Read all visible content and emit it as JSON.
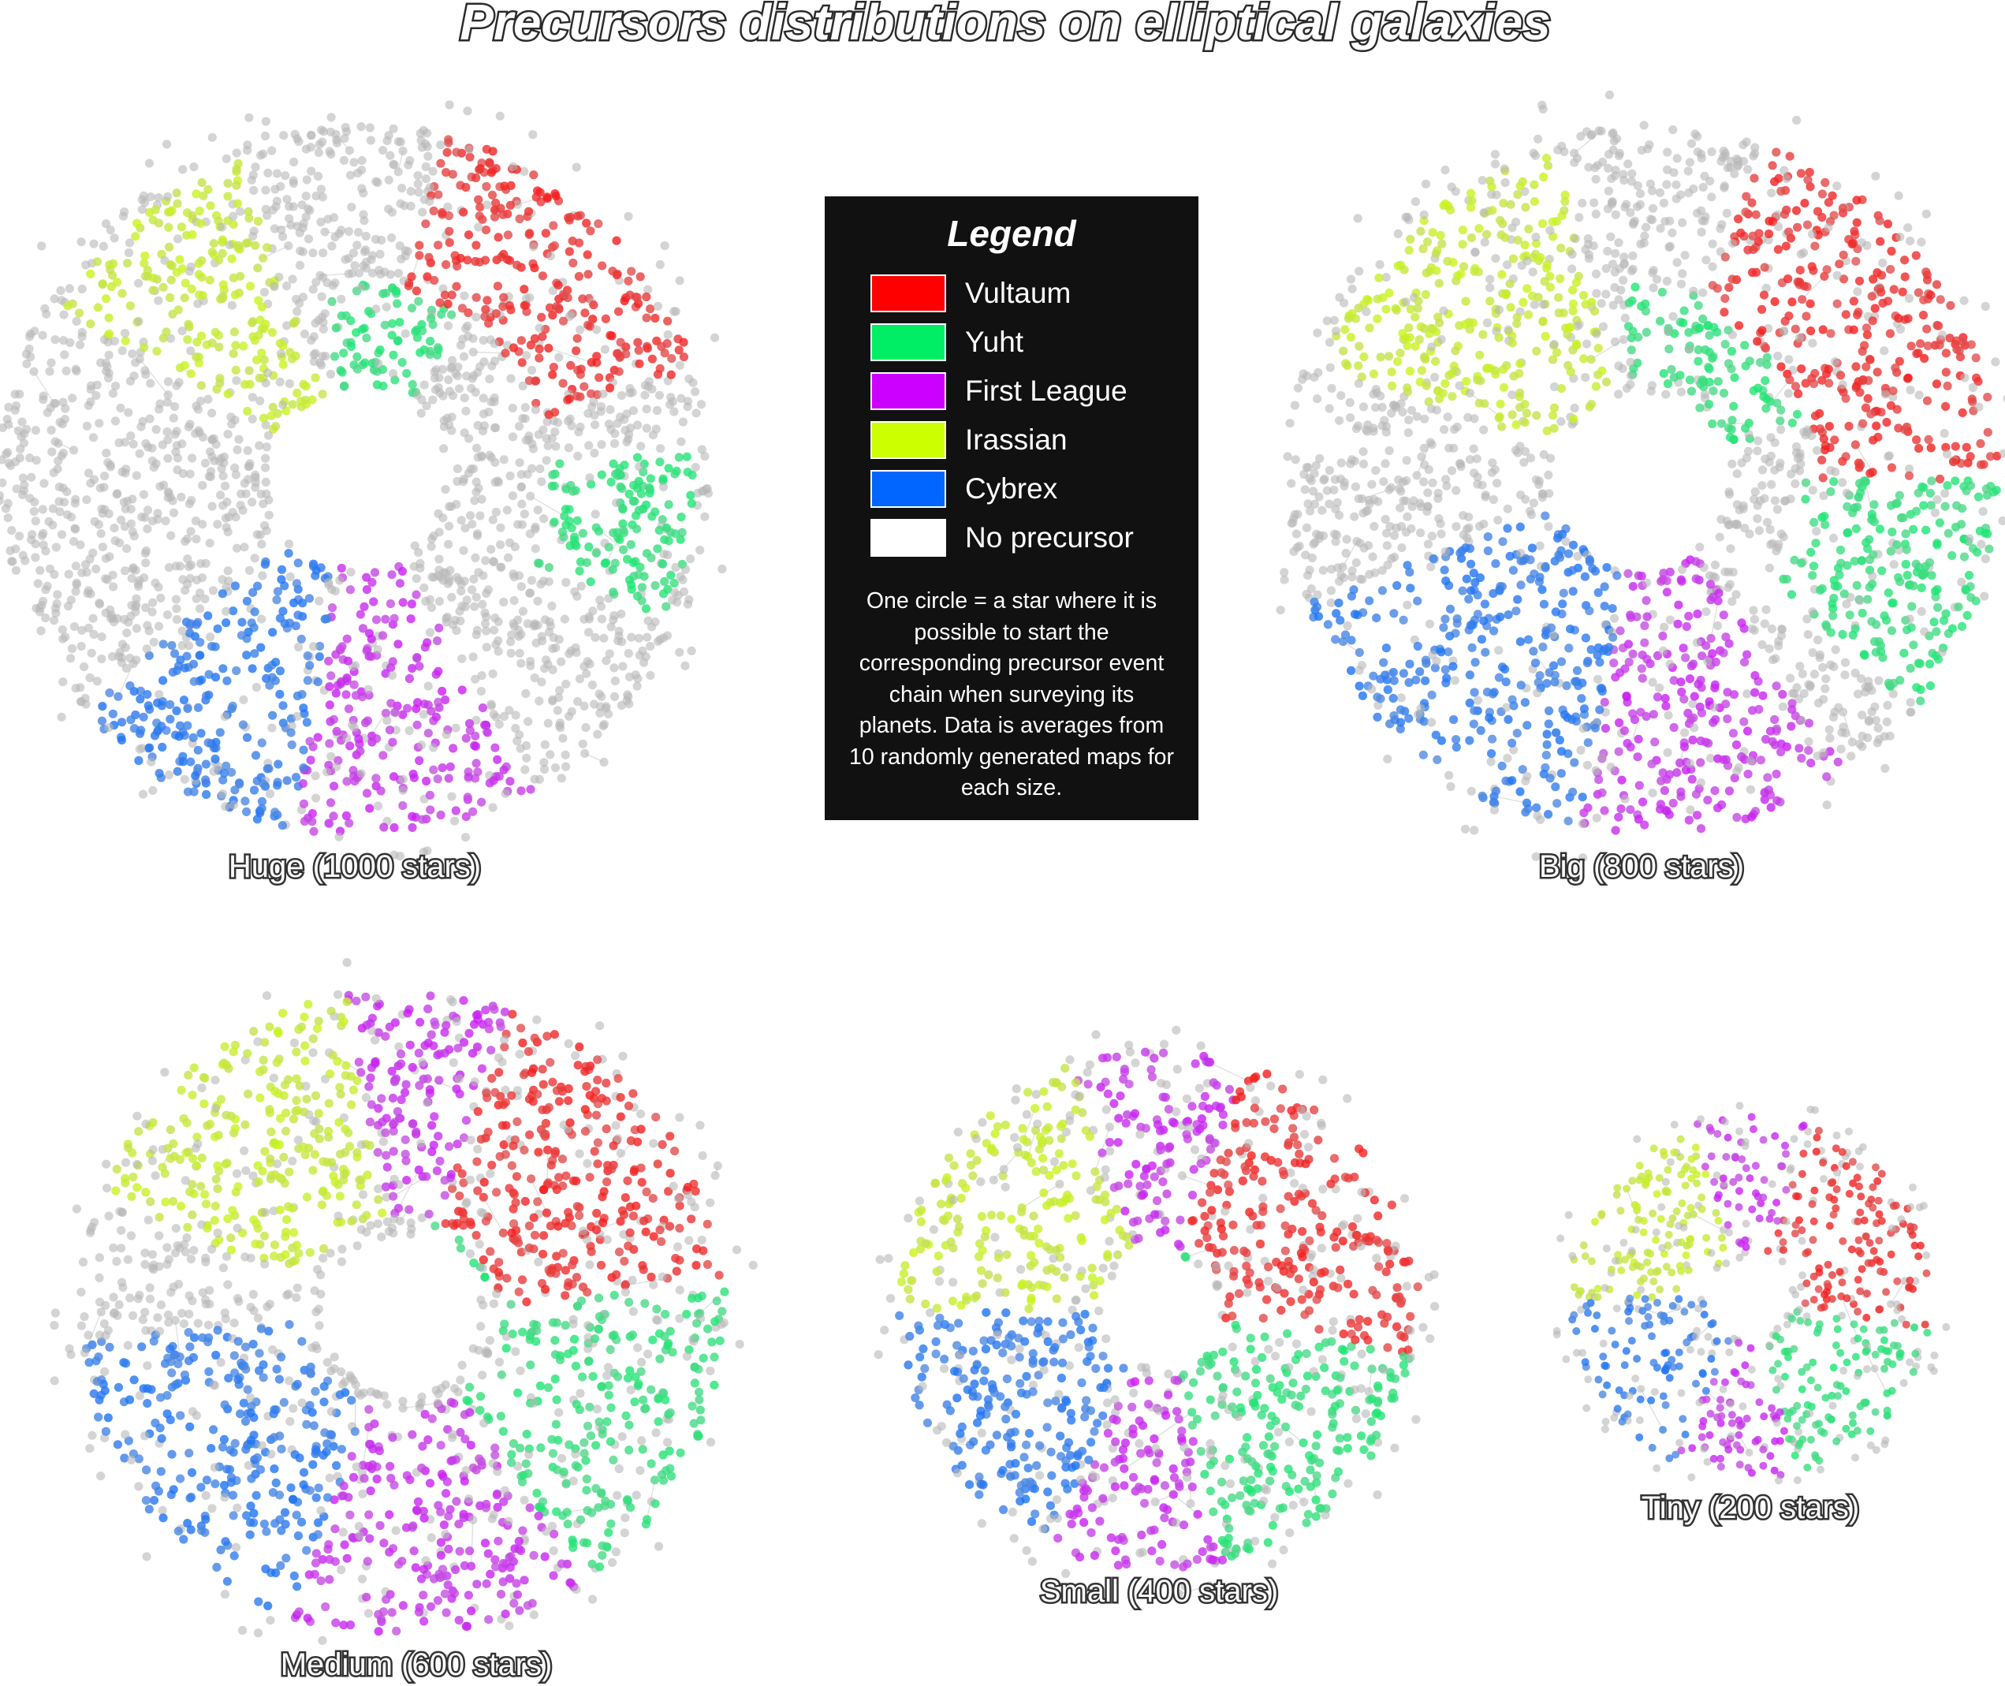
{
  "title": "Precursors distributions on elliptical galaxies",
  "legend": {
    "title": "Legend",
    "items": [
      {
        "label": "Vultaum",
        "color": "#ff0000"
      },
      {
        "label": "Yuht",
        "color": "#00ee66"
      },
      {
        "label": "First League",
        "color": "#cc00ff"
      },
      {
        "label": "Irassian",
        "color": "#ccff00"
      },
      {
        "label": "Cybrex",
        "color": "#0066ff"
      },
      {
        "label": "No precursor",
        "color": "#ffffff"
      }
    ],
    "note": "One circle = a star where it is possible to start the corresponding precursor event chain when surveying its planets. Data is averages from 10 randomly generated maps for each size."
  },
  "colors": {
    "no_precursor_star": "#b8b8b8",
    "edge": "#cccccc"
  },
  "galaxies": [
    {
      "label": "Huge (1000 stars)"
    },
    {
      "label": "Big (800 stars)"
    },
    {
      "label": "Medium (600 stars)"
    },
    {
      "label": "Small (400 stars)"
    },
    {
      "label": "Tiny (200 stars)"
    }
  ]
}
